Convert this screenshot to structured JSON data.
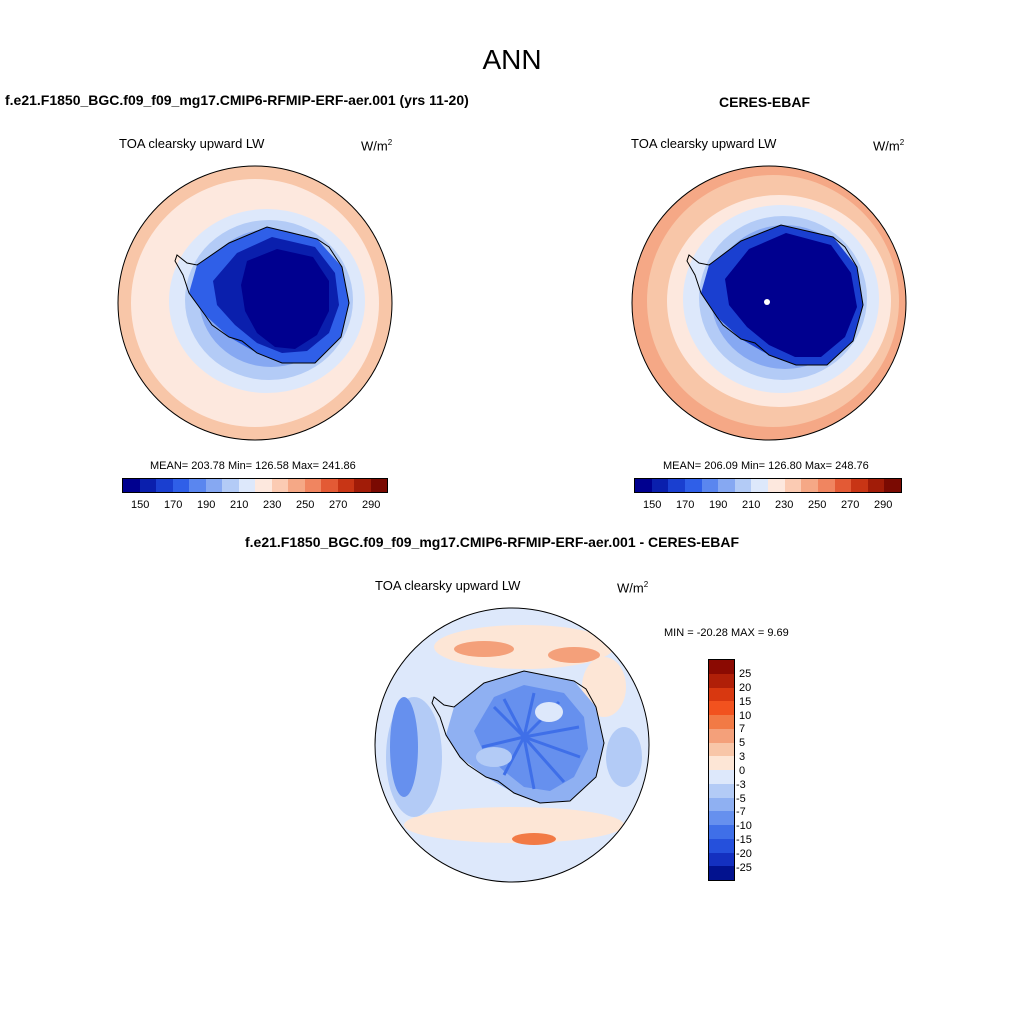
{
  "page": {
    "title": "ANN"
  },
  "panels": [
    {
      "id": "model",
      "heading": "f.e21.F1850_BGC.f09_f09_mg17.CMIP6-RFMIP-ERF-aer.001 (yrs 11-20)",
      "variable": "TOA clearsky upward LW",
      "units_base": "W/m",
      "units_exp": "2",
      "stats": "MEAN= 203.78  Min= 126.58  Max= 241.86"
    },
    {
      "id": "obs",
      "heading": "CERES-EBAF",
      "variable": "TOA clearsky upward LW",
      "units_base": "W/m",
      "units_exp": "2",
      "stats": "MEAN= 206.09  Min= 126.80  Max= 248.76"
    }
  ],
  "abs_colorbar": {
    "colors": [
      "#00008f",
      "#0a1fad",
      "#1a3fd0",
      "#2f5fe8",
      "#5a86ef",
      "#86a8f2",
      "#b3cbf6",
      "#dde8fb",
      "#fde8de",
      "#fbcbb3",
      "#f5a886",
      "#f08560",
      "#e35a35",
      "#c83515",
      "#a11c08",
      "#7a0a02"
    ],
    "ticks": [
      "150",
      "170",
      "190",
      "210",
      "230",
      "250",
      "270",
      "290"
    ]
  },
  "diff_panel": {
    "heading": "f.e21.F1850_BGC.f09_f09_mg17.CMIP6-RFMIP-ERF-aer.001 - CERES-EBAF",
    "variable": "TOA clearsky upward LW",
    "units_base": "W/m",
    "units_exp": "2",
    "minmax": "MIN = -20.28 MAX =   9.69"
  },
  "diff_colorbar": {
    "colors": [
      "#8b0a02",
      "#b01f08",
      "#d83810",
      "#f2521e",
      "#f27a45",
      "#f4a07a",
      "#f8c6a8",
      "#fde6d6",
      "#dde8fb",
      "#b3cbf6",
      "#8fb0f2",
      "#6690ee",
      "#3f6fe8",
      "#2550dc",
      "#1430c0",
      "#02128f"
    ],
    "ticks": [
      "25",
      "20",
      "15",
      "10",
      "7",
      "5",
      "3",
      "0",
      "-3",
      "-5",
      "-7",
      "-10",
      "-15",
      "-20",
      "-25"
    ]
  }
}
